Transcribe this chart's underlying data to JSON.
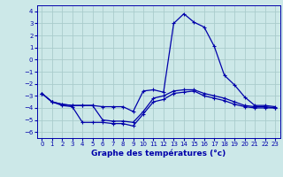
{
  "xlabel": "Graphe des températures (°c)",
  "background_color": "#cce8e8",
  "grid_color": "#aacccc",
  "line_color": "#0000aa",
  "ylim": [
    -6.5,
    4.5
  ],
  "xlim": [
    -0.5,
    23.5
  ],
  "yticks": [
    -6,
    -5,
    -4,
    -3,
    -2,
    -1,
    0,
    1,
    2,
    3,
    4
  ],
  "xticks": [
    0,
    1,
    2,
    3,
    4,
    5,
    6,
    7,
    8,
    9,
    10,
    11,
    12,
    13,
    14,
    15,
    16,
    17,
    18,
    19,
    20,
    21,
    22,
    23
  ],
  "line1_x": [
    0,
    1,
    2,
    3,
    4,
    5,
    6,
    7,
    8,
    9,
    10,
    11,
    12,
    13,
    14,
    15,
    16,
    17,
    18,
    19,
    20,
    21,
    22,
    23
  ],
  "line1_y": [
    -2.8,
    -3.5,
    -3.7,
    -3.8,
    -3.8,
    -3.8,
    -3.9,
    -3.9,
    -3.9,
    -4.3,
    -2.6,
    -2.5,
    -2.7,
    3.0,
    3.8,
    3.1,
    2.7,
    1.1,
    -1.3,
    -2.1,
    -3.1,
    -3.8,
    -3.8,
    -3.9
  ],
  "line2_x": [
    0,
    1,
    2,
    3,
    4,
    5,
    6,
    7,
    8,
    9,
    10,
    11,
    12,
    13,
    14,
    15,
    16,
    17,
    18,
    19,
    20,
    21,
    22,
    23
  ],
  "line2_y": [
    -2.8,
    -3.5,
    -3.7,
    -3.8,
    -3.8,
    -3.8,
    -5.0,
    -5.1,
    -5.1,
    -5.2,
    -4.3,
    -3.2,
    -3.0,
    -2.6,
    -2.5,
    -2.5,
    -2.8,
    -3.0,
    -3.2,
    -3.5,
    -3.8,
    -3.9,
    -3.9,
    -4.0
  ],
  "line3_x": [
    0,
    1,
    2,
    3,
    4,
    5,
    6,
    7,
    8,
    9,
    10,
    11,
    12,
    13,
    14,
    15,
    16,
    17,
    18,
    19,
    20,
    21,
    22,
    23
  ],
  "line3_y": [
    -2.8,
    -3.5,
    -3.8,
    -3.9,
    -5.2,
    -5.2,
    -5.2,
    -5.3,
    -5.3,
    -5.5,
    -4.5,
    -3.5,
    -3.3,
    -2.8,
    -2.7,
    -2.6,
    -3.0,
    -3.2,
    -3.4,
    -3.7,
    -3.9,
    -4.0,
    -4.0,
    -4.0
  ],
  "xlabel_fontsize": 6.5,
  "tick_fontsize": 5.0
}
